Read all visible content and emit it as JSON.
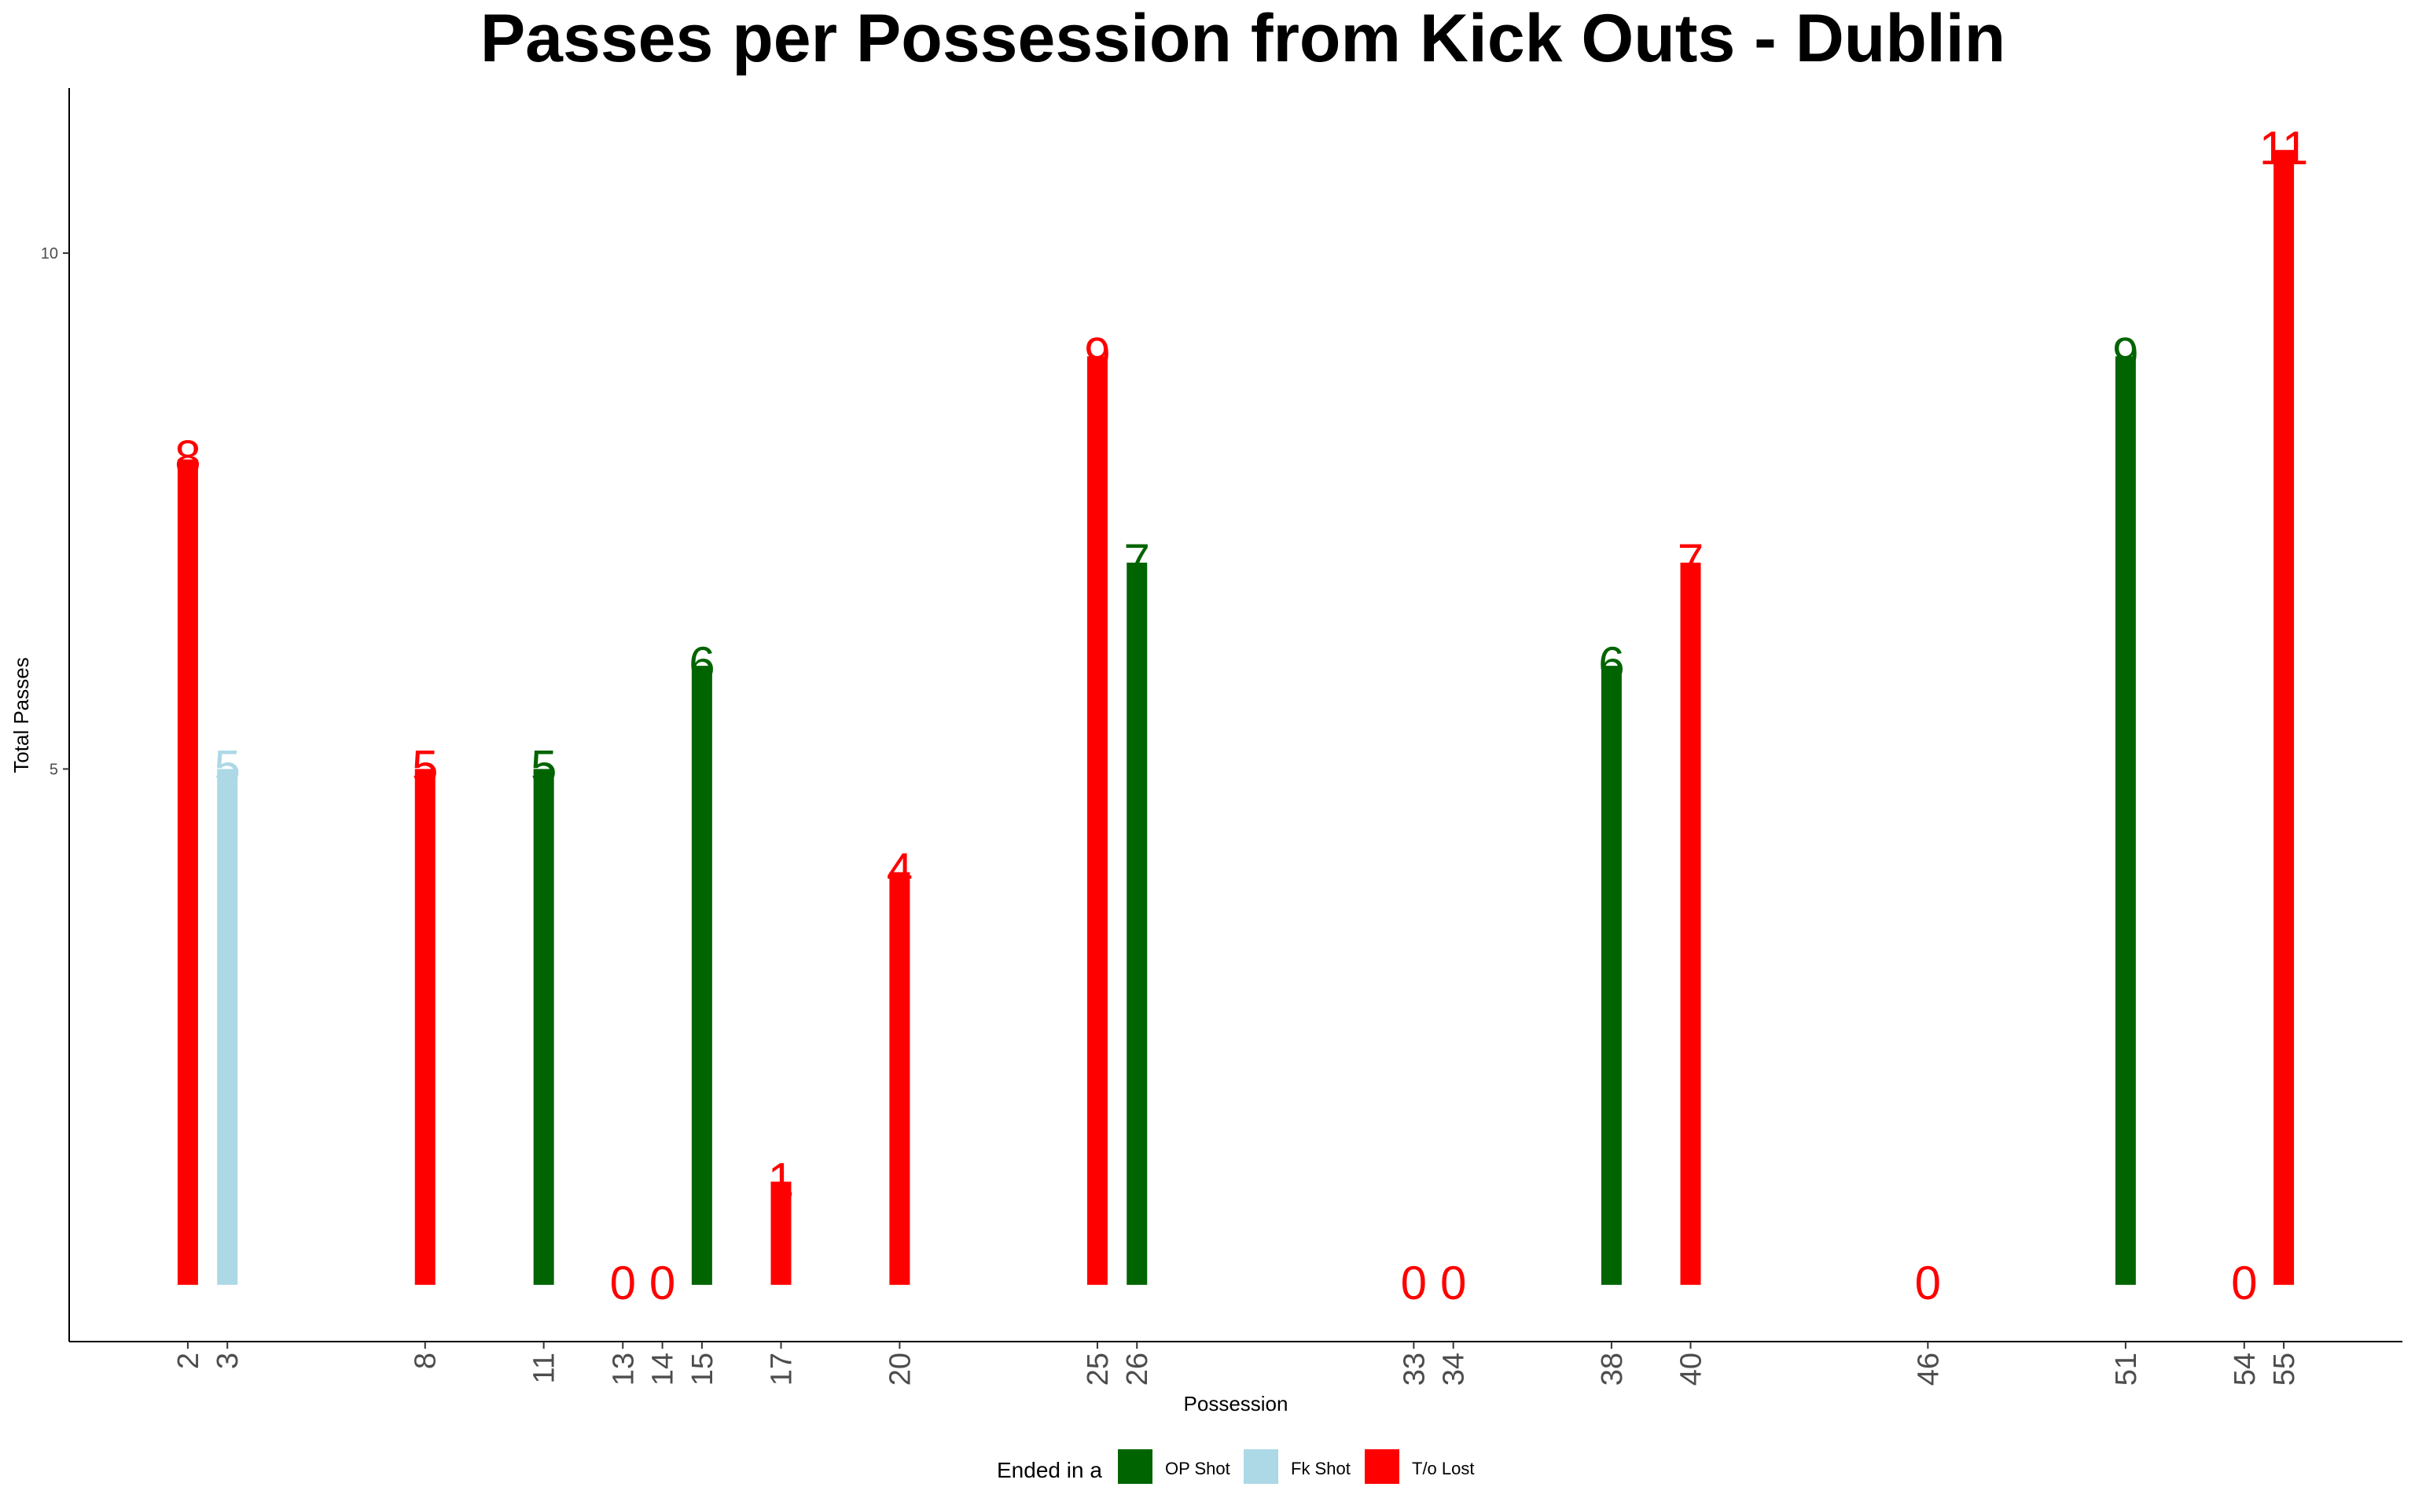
{
  "chart_data": {
    "type": "bar",
    "title": "Passes per Possession from Kick Outs - Dublin",
    "xlabel": "Possession",
    "ylabel": "Total Passes",
    "xlim": [
      -1,
      58
    ],
    "ylim": [
      -0.55,
      11.6
    ],
    "x_ticks": [
      2,
      3,
      8,
      11,
      13,
      14,
      15,
      17,
      20,
      25,
      26,
      33,
      34,
      38,
      40,
      46,
      51,
      54,
      55
    ],
    "y_ticks": [
      5,
      10
    ],
    "grid": false,
    "legend_position": "bottom",
    "legend_title": "Ended in a",
    "legend": [
      {
        "name": "OP Shot",
        "color": "#006400"
      },
      {
        "name": "Fk Shot",
        "color": "#ADD8E6"
      },
      {
        "name": "T/o Lost",
        "color": "#FF0000"
      }
    ],
    "bars": [
      {
        "x": 2,
        "value": 8,
        "label": "8",
        "outcome": "T/o Lost"
      },
      {
        "x": 3,
        "value": 5,
        "label": "5",
        "outcome": "Fk Shot"
      },
      {
        "x": 8,
        "value": 5,
        "label": "5",
        "outcome": "T/o Lost"
      },
      {
        "x": 11,
        "value": 5,
        "label": "5",
        "outcome": "OP Shot"
      },
      {
        "x": 13,
        "value": 0,
        "label": "0",
        "outcome": "T/o Lost"
      },
      {
        "x": 14,
        "value": 0,
        "label": "0",
        "outcome": "T/o Lost"
      },
      {
        "x": 15,
        "value": 6,
        "label": "6",
        "outcome": "OP Shot"
      },
      {
        "x": 17,
        "value": 1,
        "label": "1",
        "outcome": "T/o Lost"
      },
      {
        "x": 20,
        "value": 4,
        "label": "4",
        "outcome": "T/o Lost"
      },
      {
        "x": 25,
        "value": 9,
        "label": "9",
        "outcome": "T/o Lost"
      },
      {
        "x": 26,
        "value": 7,
        "label": "7",
        "outcome": "OP Shot"
      },
      {
        "x": 33,
        "value": 0,
        "label": "0",
        "outcome": "T/o Lost"
      },
      {
        "x": 34,
        "value": 0,
        "label": "0",
        "outcome": "T/o Lost"
      },
      {
        "x": 38,
        "value": 6,
        "label": "6",
        "outcome": "OP Shot"
      },
      {
        "x": 40,
        "value": 7,
        "label": "7",
        "outcome": "T/o Lost"
      },
      {
        "x": 46,
        "value": 0,
        "label": "0",
        "outcome": "T/o Lost"
      },
      {
        "x": 51,
        "value": 9,
        "label": "9",
        "outcome": "OP Shot"
      },
      {
        "x": 54,
        "value": 0,
        "label": "0",
        "outcome": "T/o Lost"
      },
      {
        "x": 55,
        "value": 11,
        "label": "11",
        "outcome": "T/o Lost"
      }
    ]
  }
}
